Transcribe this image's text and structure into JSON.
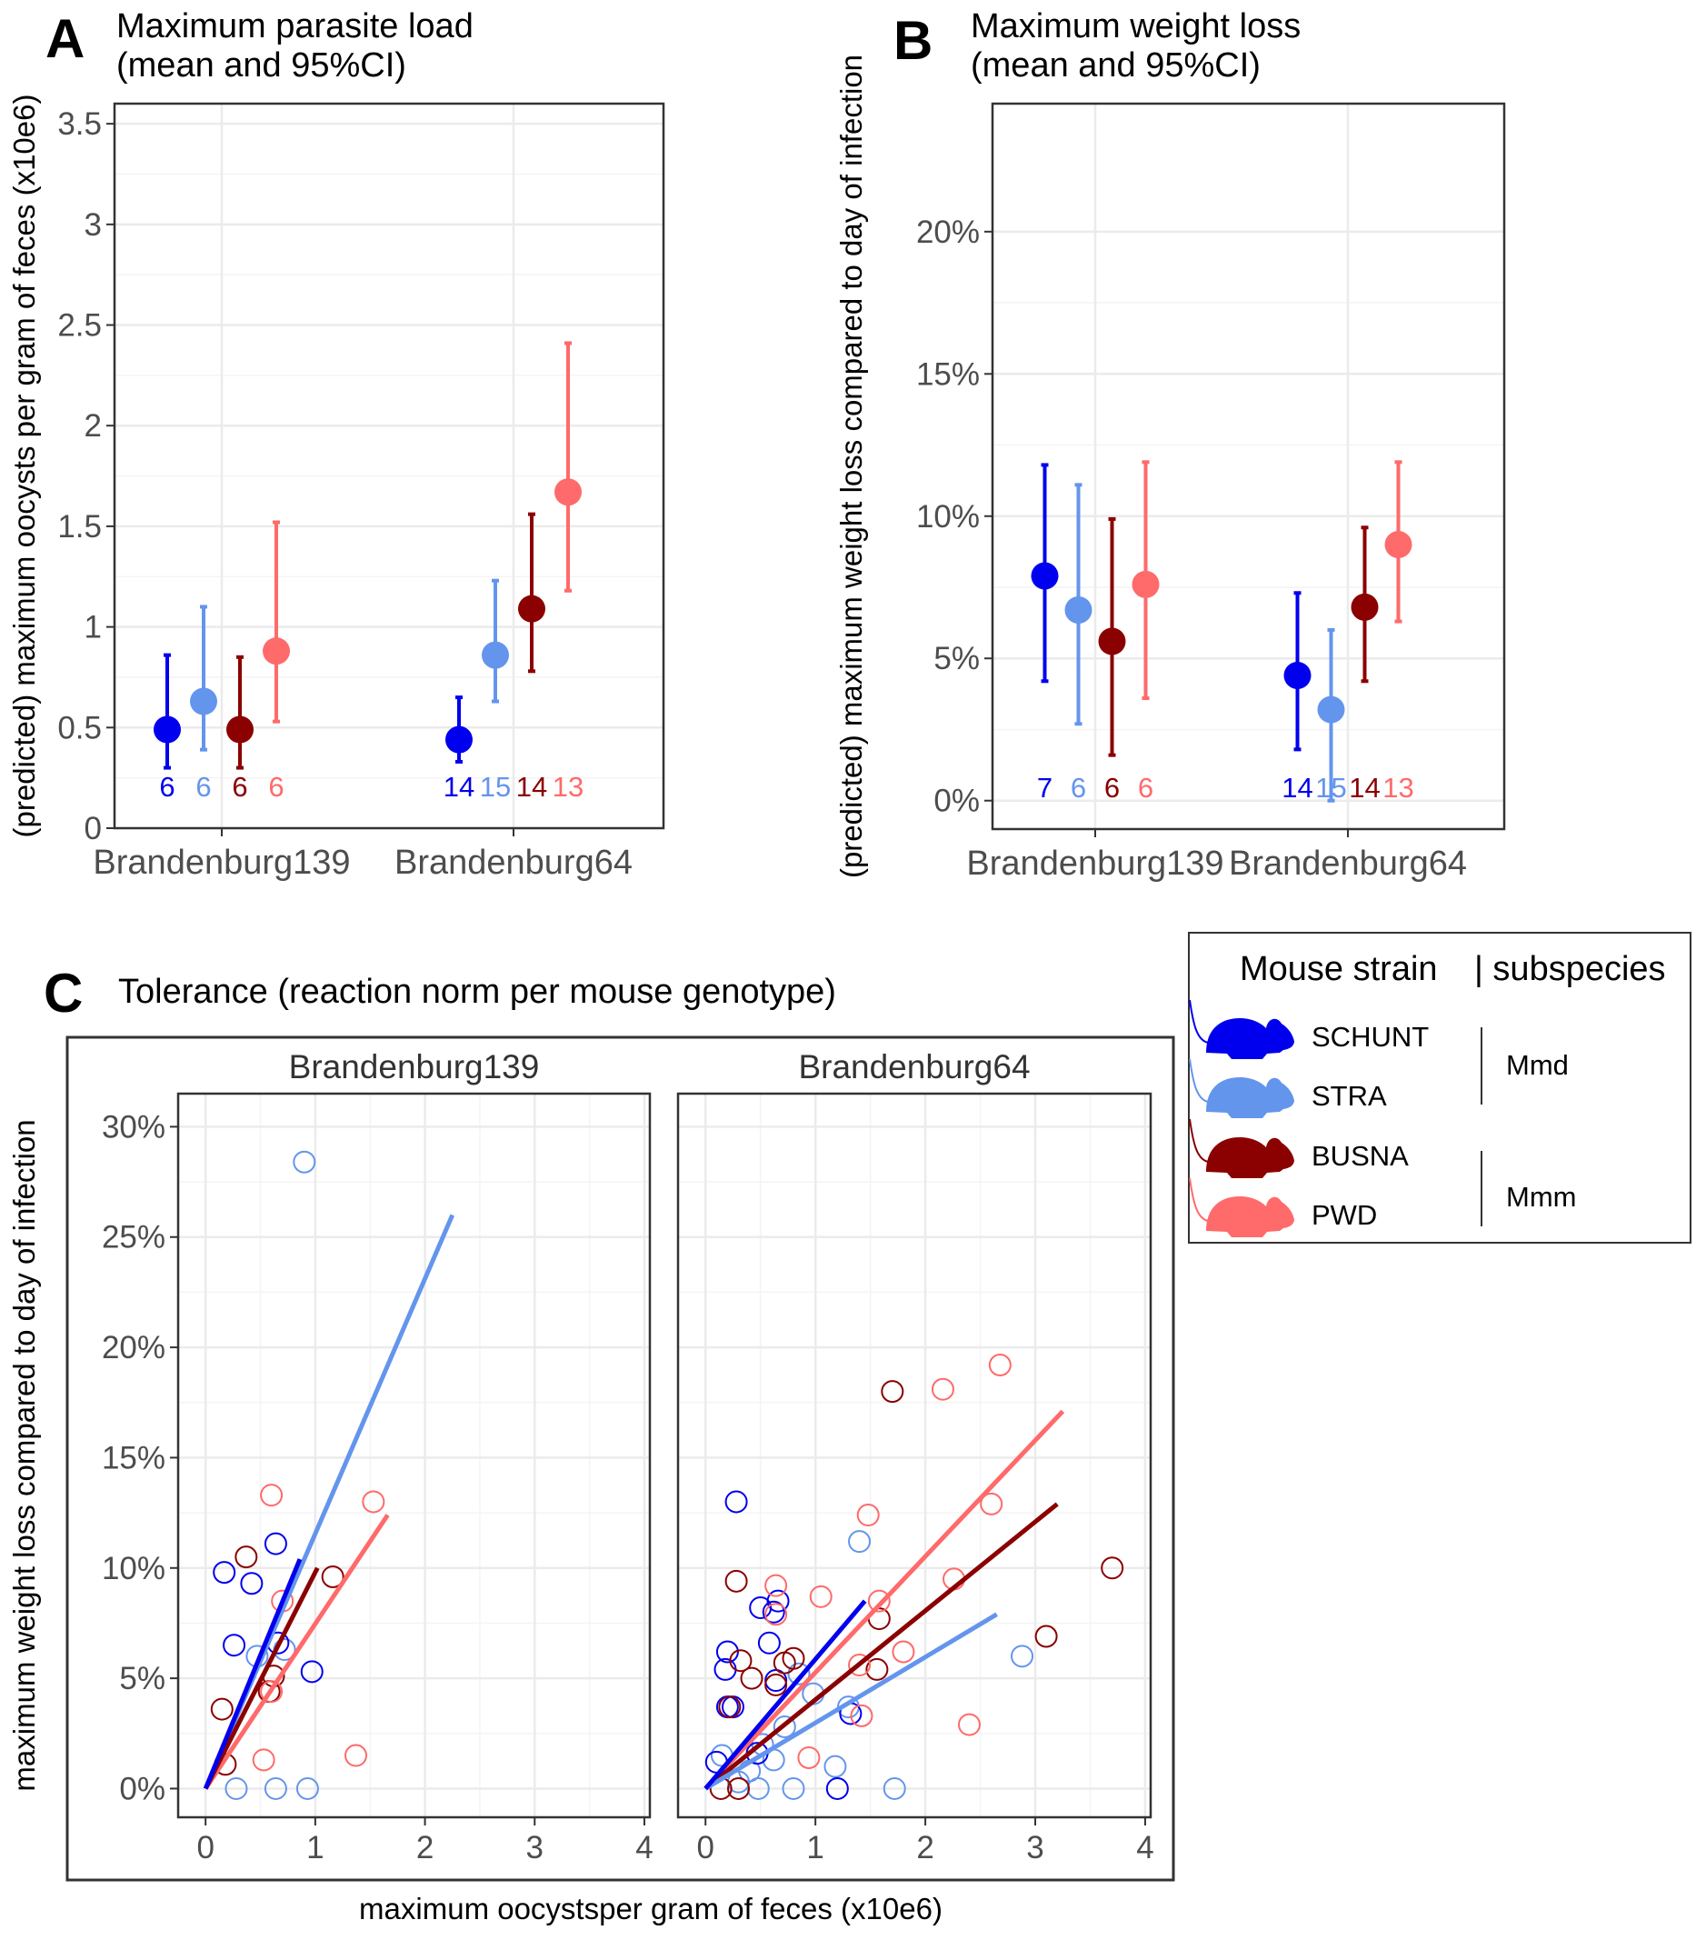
{
  "panels": {
    "A": {
      "letter": "A",
      "title_line1": "Maximum parasite load",
      "title_line2": "(mean and 95%CI)"
    },
    "B": {
      "letter": "B",
      "title_line1": "Maximum weight loss",
      "title_line2": "(mean and 95%CI)"
    },
    "C": {
      "letter": "C",
      "title": "Tolerance (reaction norm per mouse genotype)"
    }
  },
  "legend": {
    "title": "Mouse strain",
    "subtitle": "| subspecies",
    "groups": [
      {
        "label": "Mmd",
        "strains": [
          "SCHUNT",
          "STRA"
        ]
      },
      {
        "label": "Mmm",
        "strains": [
          "BUSNA",
          "PWD"
        ]
      }
    ],
    "strains": [
      {
        "name": "SCHUNT",
        "color": "#0000ee",
        "icon": "mouse-silhouette-icon"
      },
      {
        "name": "STRA",
        "color": "#6495ed",
        "icon": "mouse-silhouette-icon"
      },
      {
        "name": "BUSNA",
        "color": "#8b0000",
        "icon": "mouse-silhouette-icon"
      },
      {
        "name": "PWD",
        "color": "#ff6a6a",
        "icon": "mouse-silhouette-icon"
      }
    ]
  },
  "chart_data": [
    {
      "id": "A",
      "type": "scatter",
      "title": "Maximum parasite load (mean and 95%CI)",
      "ylabel": "(predicted) maximum oocysts per gram of feces (x10e6)",
      "xlabel": "",
      "categories": [
        "Brandenburg139",
        "Brandenburg64"
      ],
      "ylim": [
        0,
        3.6
      ],
      "yticks": [
        0,
        0.5,
        1,
        1.5,
        2,
        2.5,
        3,
        3.5
      ],
      "ytick_labels": [
        "0",
        "0.5",
        "1",
        "1.5",
        "2",
        "2.5",
        "3",
        "3.5"
      ],
      "grid": true,
      "series": [
        {
          "name": "SCHUNT",
          "color": "#0000ee",
          "mean": [
            0.49,
            0.44
          ],
          "lower": [
            0.3,
            0.33
          ],
          "upper": [
            0.86,
            0.65
          ],
          "n": [
            "6",
            "14"
          ]
        },
        {
          "name": "STRA",
          "color": "#6495ed",
          "mean": [
            0.63,
            0.86
          ],
          "lower": [
            0.39,
            0.63
          ],
          "upper": [
            1.1,
            1.23
          ],
          "n": [
            "6",
            "15"
          ]
        },
        {
          "name": "BUSNA",
          "color": "#8b0000",
          "mean": [
            0.49,
            1.09
          ],
          "lower": [
            0.3,
            0.78
          ],
          "upper": [
            0.85,
            1.56
          ],
          "n": [
            "6",
            "14"
          ]
        },
        {
          "name": "PWD",
          "color": "#ff6a6a",
          "mean": [
            0.88,
            1.67
          ],
          "lower": [
            0.53,
            1.18
          ],
          "upper": [
            1.52,
            2.41
          ],
          "n": [
            "6",
            "13"
          ]
        }
      ]
    },
    {
      "id": "B",
      "type": "scatter",
      "title": "Maximum weight loss (mean and 95%CI)",
      "ylabel": "(predicted) maximum weight loss compared to day of infection",
      "xlabel": "",
      "categories": [
        "Brandenburg139",
        "Brandenburg64"
      ],
      "ylim": [
        -0.01,
        0.245
      ],
      "yticks": [
        0,
        0.05,
        0.1,
        0.15,
        0.2
      ],
      "ytick_labels": [
        "0%",
        "5%",
        "10%",
        "15%",
        "20%"
      ],
      "grid": true,
      "series": [
        {
          "name": "SCHUNT",
          "color": "#0000ee",
          "mean": [
            0.079,
            0.044
          ],
          "lower": [
            0.042,
            0.018
          ],
          "upper": [
            0.118,
            0.073
          ],
          "n": [
            "7",
            "14"
          ]
        },
        {
          "name": "STRA",
          "color": "#6495ed",
          "mean": [
            0.067,
            0.032
          ],
          "lower": [
            0.027,
            0.0
          ],
          "upper": [
            0.111,
            0.06
          ],
          "n": [
            "6",
            "15"
          ]
        },
        {
          "name": "BUSNA",
          "color": "#8b0000",
          "mean": [
            0.056,
            0.068
          ],
          "lower": [
            0.016,
            0.042
          ],
          "upper": [
            0.099,
            0.096
          ],
          "n": [
            "6",
            "14"
          ]
        },
        {
          "name": "PWD",
          "color": "#ff6a6a",
          "mean": [
            0.076,
            0.09
          ],
          "lower": [
            0.036,
            0.063
          ],
          "upper": [
            0.119,
            0.119
          ],
          "n": [
            "6",
            "13"
          ]
        }
      ]
    },
    {
      "id": "C",
      "type": "scatter",
      "title": "Tolerance (reaction norm per mouse genotype)",
      "xlabel": "maximum oocystsper gram of feces (x10e6)",
      "ylabel": "maximum weight loss compared to day of infection",
      "xlim": [
        -0.25,
        4.05
      ],
      "ylim": [
        -0.013,
        0.315
      ],
      "xticks": [
        0,
        1,
        2,
        3,
        4
      ],
      "xtick_labels": [
        "0",
        "1",
        "2",
        "3",
        "4"
      ],
      "yticks": [
        0,
        0.05,
        0.1,
        0.15,
        0.2,
        0.25,
        0.3
      ],
      "ytick_labels": [
        "0%",
        "5%",
        "10%",
        "15%",
        "20%",
        "25%",
        "30%"
      ],
      "grid": true,
      "facets": [
        {
          "name": "Brandenburg139",
          "lines": [
            {
              "strain": "STRA",
              "color": "#6495ed",
              "x": [
                0,
                2.25
              ],
              "y": [
                0,
                0.26
              ]
            },
            {
              "strain": "PWD",
              "color": "#ff6a6a",
              "x": [
                0,
                1.66
              ],
              "y": [
                0,
                0.124
              ]
            },
            {
              "strain": "BUSNA",
              "color": "#8b0000",
              "x": [
                0,
                1.02
              ],
              "y": [
                0,
                0.1
              ]
            },
            {
              "strain": "SCHUNT",
              "color": "#0000ee",
              "x": [
                0,
                0.86
              ],
              "y": [
                0,
                0.104
              ]
            }
          ],
          "points": [
            {
              "strain": "STRA",
              "color": "#6495ed",
              "xy": [
                [
                  0.9,
                  0.284
                ],
                [
                  0.28,
                  0.0
                ],
                [
                  0.64,
                  0.0
                ],
                [
                  0.93,
                  0.0
                ],
                [
                  0.47,
                  0.06
                ],
                [
                  0.72,
                  0.063
                ]
              ]
            },
            {
              "strain": "SCHUNT",
              "color": "#0000ee",
              "xy": [
                [
                  0.17,
                  0.098
                ],
                [
                  0.42,
                  0.093
                ],
                [
                  0.64,
                  0.111
                ],
                [
                  0.26,
                  0.065
                ],
                [
                  0.66,
                  0.066
                ],
                [
                  0.97,
                  0.053
                ]
              ]
            },
            {
              "strain": "BUSNA",
              "color": "#8b0000",
              "xy": [
                [
                  0.37,
                  0.105
                ],
                [
                  1.16,
                  0.096
                ],
                [
                  0.15,
                  0.036
                ],
                [
                  0.18,
                  0.011
                ],
                [
                  0.58,
                  0.044
                ],
                [
                  0.62,
                  0.051
                ]
              ]
            },
            {
              "strain": "PWD",
              "color": "#ff6a6a",
              "xy": [
                [
                  0.6,
                  0.133
                ],
                [
                  1.53,
                  0.13
                ],
                [
                  0.7,
                  0.085
                ],
                [
                  0.53,
                  0.013
                ],
                [
                  1.37,
                  0.015
                ],
                [
                  0.6,
                  0.044
                ]
              ]
            }
          ]
        },
        {
          "name": "Brandenburg64",
          "lines": [
            {
              "strain": "PWD",
              "color": "#ff6a6a",
              "x": [
                0,
                3.25
              ],
              "y": [
                0,
                0.171
              ]
            },
            {
              "strain": "BUSNA",
              "color": "#8b0000",
              "x": [
                0,
                3.2
              ],
              "y": [
                0,
                0.129
              ]
            },
            {
              "strain": "STRA",
              "color": "#6495ed",
              "x": [
                0,
                2.65
              ],
              "y": [
                0,
                0.079
              ]
            },
            {
              "strain": "SCHUNT",
              "color": "#0000ee",
              "x": [
                0,
                1.45
              ],
              "y": [
                0,
                0.085
              ]
            }
          ],
          "points": [
            {
              "strain": "STRA",
              "color": "#6495ed",
              "xy": [
                [
                  1.4,
                  0.112
                ],
                [
                  2.88,
                  0.06
                ],
                [
                  1.18,
                  0.01
                ],
                [
                  0.48,
                  0.0
                ],
                [
                  0.8,
                  0.0
                ],
                [
                  1.72,
                  0.0
                ],
                [
                  0.3,
                  0.003
                ],
                [
                  0.62,
                  0.013
                ],
                [
                  0.52,
                  0.02
                ],
                [
                  0.98,
                  0.043
                ],
                [
                  0.72,
                  0.028
                ],
                [
                  0.4,
                  0.008
                ],
                [
                  1.3,
                  0.037
                ],
                [
                  0.15,
                  0.015
                ],
                [
                  0.85,
                  0.052
                ]
              ]
            },
            {
              "strain": "SCHUNT",
              "color": "#0000ee",
              "xy": [
                [
                  0.28,
                  0.13
                ],
                [
                  0.5,
                  0.082
                ],
                [
                  0.62,
                  0.08
                ],
                [
                  0.66,
                  0.085
                ],
                [
                  0.58,
                  0.066
                ],
                [
                  0.2,
                  0.062
                ],
                [
                  0.18,
                  0.054
                ],
                [
                  0.64,
                  0.049
                ],
                [
                  0.2,
                  0.037
                ],
                [
                  0.25,
                  0.037
                ],
                [
                  1.32,
                  0.034
                ],
                [
                  0.47,
                  0.016
                ],
                [
                  0.1,
                  0.012
                ],
                [
                  1.2,
                  0.0
                ]
              ]
            },
            {
              "strain": "BUSNA",
              "color": "#8b0000",
              "xy": [
                [
                  1.7,
                  0.18
                ],
                [
                  0.28,
                  0.094
                ],
                [
                  3.7,
                  0.1
                ],
                [
                  1.58,
                  0.077
                ],
                [
                  3.1,
                  0.069
                ],
                [
                  0.8,
                  0.059
                ],
                [
                  0.32,
                  0.058
                ],
                [
                  0.72,
                  0.057
                ],
                [
                  0.42,
                  0.05
                ],
                [
                  0.64,
                  0.047
                ],
                [
                  1.56,
                  0.054
                ],
                [
                  0.22,
                  0.037
                ],
                [
                  0.14,
                  0.0
                ],
                [
                  0.3,
                  0.0
                ]
              ]
            },
            {
              "strain": "PWD",
              "color": "#ff6a6a",
              "xy": [
                [
                  2.68,
                  0.192
                ],
                [
                  2.16,
                  0.181
                ],
                [
                  2.6,
                  0.129
                ],
                [
                  1.48,
                  0.124
                ],
                [
                  2.26,
                  0.095
                ],
                [
                  0.64,
                  0.092
                ],
                [
                  1.05,
                  0.087
                ],
                [
                  1.58,
                  0.085
                ],
                [
                  0.64,
                  0.079
                ],
                [
                  1.8,
                  0.062
                ],
                [
                  1.4,
                  0.056
                ],
                [
                  1.42,
                  0.033
                ],
                [
                  2.4,
                  0.029
                ],
                [
                  0.94,
                  0.014
                ]
              ]
            }
          ]
        }
      ]
    }
  ]
}
